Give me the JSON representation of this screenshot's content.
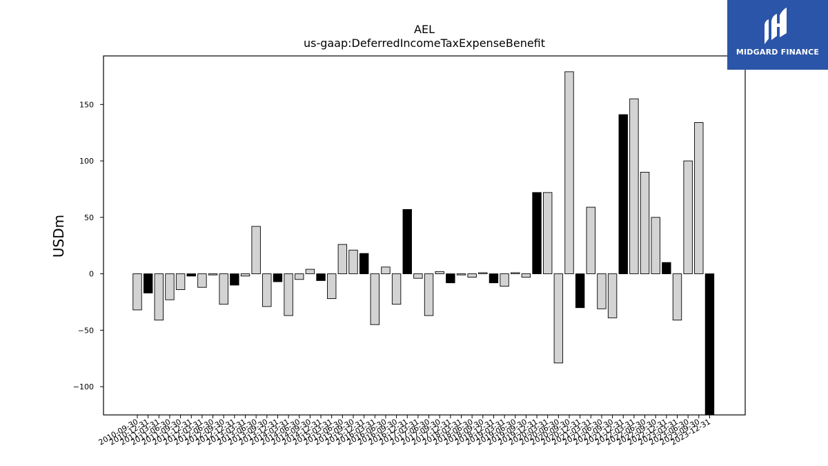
{
  "logo": {
    "text": "MIDGARD FINANCE",
    "background": "#2b55a8"
  },
  "chart_data": {
    "type": "bar",
    "title": "AEL",
    "subtitle": "us-gaap:DeferredIncomeTaxExpenseBenefit",
    "ylabel": "USDm",
    "xlabel": "",
    "ylim": [
      -125,
      193
    ],
    "yticks": [
      -100,
      -50,
      0,
      50,
      100,
      150
    ],
    "categories": [
      "2010-09-30",
      "2010-12-31",
      "2011-03-31",
      "2011-06-30",
      "2011-09-30",
      "2011-12-31",
      "2012-03-31",
      "2012-06-30",
      "2012-09-30",
      "2012-12-31",
      "2013-03-31",
      "2013-06-30",
      "2013-09-30",
      "2013-12-31",
      "2014-03-31",
      "2014-06-30",
      "2014-09-30",
      "2014-12-31",
      "2015-03-31",
      "2015-06-30",
      "2015-09-30",
      "2015-12-31",
      "2016-03-31",
      "2016-06-30",
      "2016-09-30",
      "2016-12-31",
      "2017-03-31",
      "2017-06-30",
      "2017-09-30",
      "2017-12-31",
      "2018-03-31",
      "2018-06-30",
      "2018-09-30",
      "2018-12-31",
      "2019-03-31",
      "2019-06-30",
      "2019-09-30",
      "2019-12-31",
      "2020-03-31",
      "2020-06-30",
      "2020-09-30",
      "2020-12-31",
      "2021-03-31",
      "2021-06-30",
      "2021-09-30",
      "2021-12-31",
      "2022-03-31",
      "2022-06-30",
      "2022-09-30",
      "2022-12-31",
      "2023-03-31",
      "2023-06-30",
      "2023-09-30",
      "2023-12-31"
    ],
    "values": [
      -32,
      -17,
      -41,
      -23,
      -14,
      -2,
      -12,
      -1,
      -27,
      -10,
      -2,
      42,
      -29,
      -7,
      -37,
      -5,
      4,
      -6,
      -22,
      26,
      21,
      18,
      -45,
      6,
      -27,
      57,
      -4,
      -37,
      2,
      -8,
      -1,
      -3,
      1,
      -8,
      -11,
      1,
      -3,
      72,
      72,
      -79,
      179,
      -30,
      59,
      -31,
      -39,
      141,
      155,
      90,
      50,
      10,
      -41,
      100,
      134,
      -125
    ],
    "highlight": [
      false,
      true,
      false,
      false,
      false,
      true,
      false,
      false,
      false,
      true,
      false,
      false,
      false,
      true,
      false,
      false,
      false,
      true,
      false,
      false,
      false,
      true,
      false,
      false,
      false,
      true,
      false,
      false,
      false,
      true,
      false,
      false,
      false,
      true,
      false,
      false,
      false,
      true,
      false,
      false,
      false,
      true,
      false,
      false,
      false,
      true,
      false,
      false,
      false,
      true,
      false,
      false,
      false,
      true
    ],
    "colors": {
      "bar": "#d3d3d3",
      "highlight_bar": "#000000",
      "edge": "#000000"
    },
    "grid": false,
    "legend": "none"
  }
}
